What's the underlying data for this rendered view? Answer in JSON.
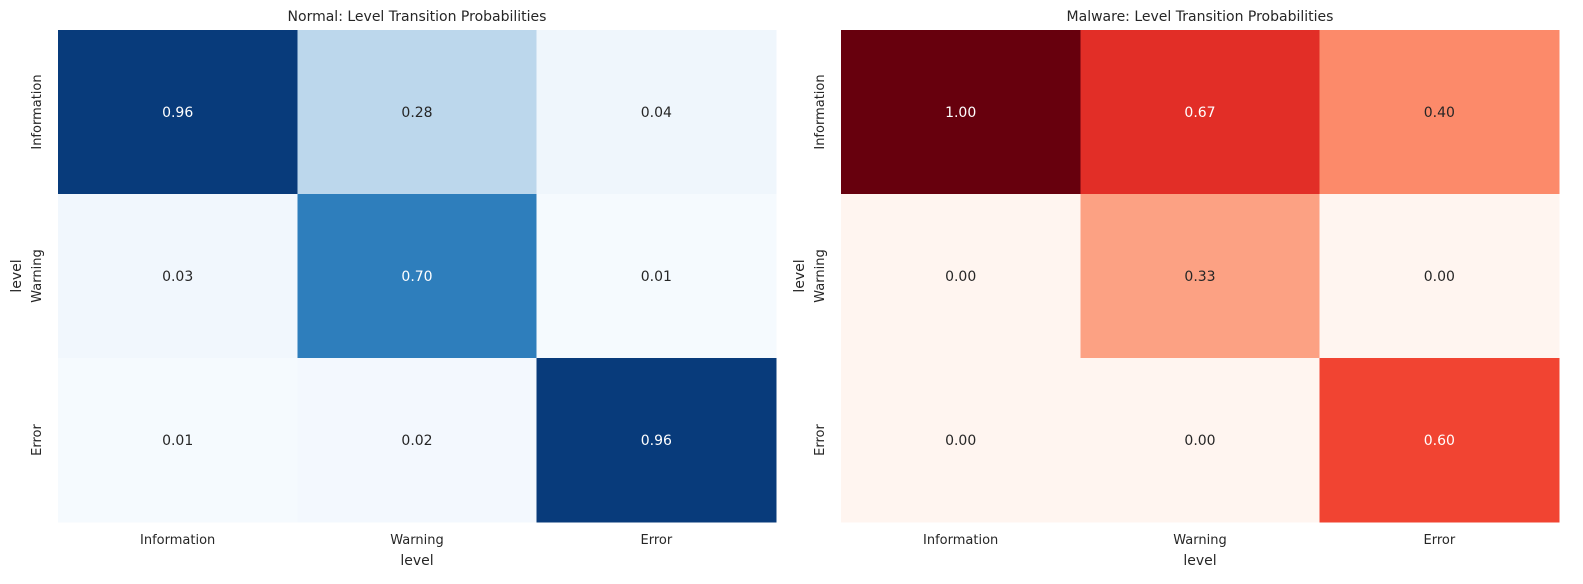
{
  "chart_data": [
    {
      "type": "heatmap",
      "title": "Normal: Level Transition Probabilities",
      "xlabel": "level",
      "ylabel": "level",
      "x_categories": [
        "Information",
        "Warning",
        "Error"
      ],
      "y_categories": [
        "Information",
        "Warning",
        "Error"
      ],
      "values": [
        [
          0.96,
          0.28,
          0.04
        ],
        [
          0.03,
          0.7,
          0.01
        ],
        [
          0.01,
          0.02,
          0.96
        ]
      ],
      "value_range": [
        0,
        1
      ],
      "colormap": "Blues",
      "colorbar": false,
      "grid": false
    },
    {
      "type": "heatmap",
      "title": "Malware: Level Transition Probabilities",
      "xlabel": "level",
      "ylabel": "level",
      "x_categories": [
        "Information",
        "Warning",
        "Error"
      ],
      "y_categories": [
        "Information",
        "Warning",
        "Error"
      ],
      "values": [
        [
          1.0,
          0.67,
          0.4
        ],
        [
          0.0,
          0.33,
          0.0
        ],
        [
          0.0,
          0.0,
          0.6
        ]
      ],
      "value_range": [
        0,
        1
      ],
      "colormap": "Reds",
      "colorbar": false,
      "grid": false
    }
  ],
  "colors": {
    "Blues": [
      "#f7fbff",
      "#deebf7",
      "#c6dbef",
      "#9ecae1",
      "#6baed6",
      "#4292c6",
      "#2171b5",
      "#08519c",
      "#08306b"
    ],
    "Reds": [
      "#fff5f0",
      "#fee0d2",
      "#fcbba1",
      "#fc9272",
      "#fb6a4a",
      "#ef3b2c",
      "#cb181d",
      "#a50f15",
      "#67000d"
    ],
    "text_dark": "#262626",
    "text_light": "#ffffff"
  }
}
